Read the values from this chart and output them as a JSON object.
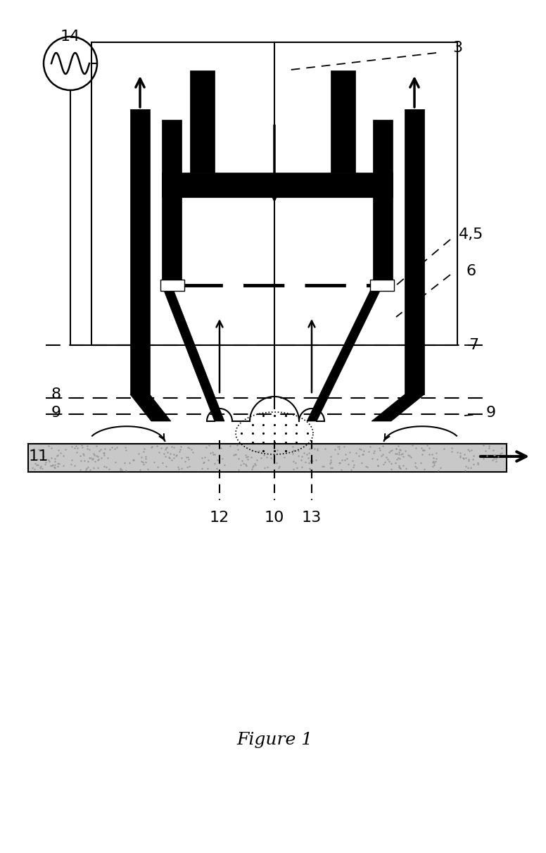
{
  "fig_width": 7.76,
  "fig_height": 12.11,
  "dpi": 100,
  "bg_color": "#ffffff",
  "black": "#000000"
}
